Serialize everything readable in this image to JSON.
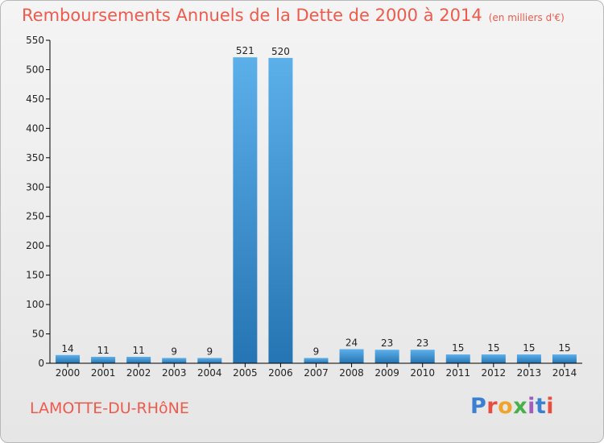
{
  "title": "Remboursements Annuels de la Dette de 2000 à 2014",
  "subtitle": "(en milliers d'€)",
  "commune": "LAMOTTE-DU-RHôNE",
  "brand": "Proxiti",
  "colors": {
    "title": "#ef5a4c",
    "bar_light": "#5cb0ea",
    "bar_dark": "#2574b3",
    "axis": "#000000"
  },
  "chart_data": {
    "type": "bar",
    "title": "Remboursements Annuels de la Dette de 2000 à 2014",
    "subtitle": "(en milliers d'€)",
    "xlabel": "",
    "ylabel": "",
    "categories": [
      "2000",
      "2001",
      "2002",
      "2003",
      "2004",
      "2005",
      "2006",
      "2007",
      "2008",
      "2009",
      "2010",
      "2011",
      "2012",
      "2013",
      "2014"
    ],
    "values": [
      14,
      11,
      11,
      9,
      9,
      521,
      520,
      9,
      24,
      23,
      23,
      15,
      15,
      15,
      15
    ],
    "ylim": [
      0,
      550
    ],
    "yticks": [
      0,
      50,
      100,
      150,
      200,
      250,
      300,
      350,
      400,
      450,
      500,
      550
    ],
    "grid": false,
    "legend": "none"
  }
}
